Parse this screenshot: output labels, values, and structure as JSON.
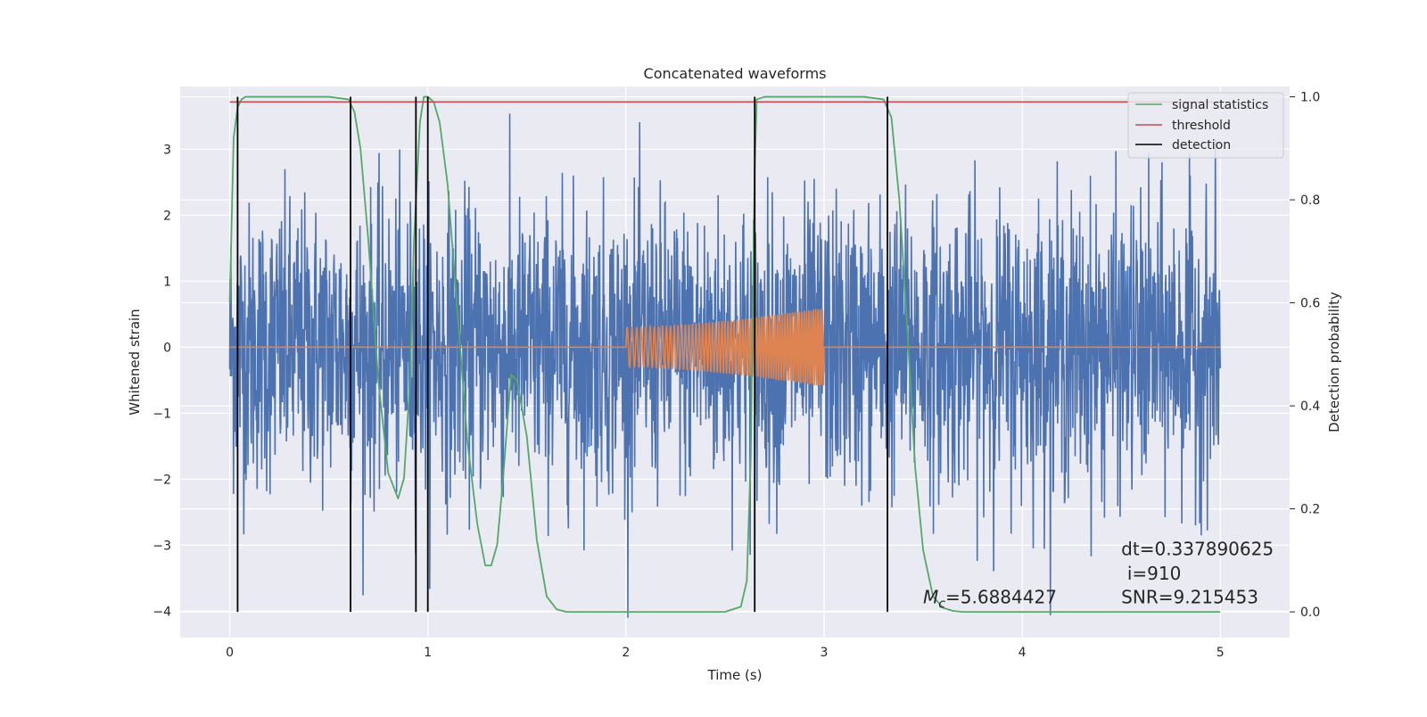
{
  "chart_data": {
    "type": "line",
    "title": "Concatenated waveforms",
    "xlabel": "Time (s)",
    "ylabel": "Whitened strain",
    "ylabel_right": "Detection probability",
    "xlim": [
      -0.25,
      5.35
    ],
    "ylim": [
      -4.4,
      3.95
    ],
    "ylim_right": [
      -0.05,
      1.02
    ],
    "x_ticks": [
      0,
      1,
      2,
      3,
      4,
      5
    ],
    "x_tick_labels": [
      "0",
      "1",
      "2",
      "3",
      "4",
      "5"
    ],
    "y_ticks": [
      -4,
      -3,
      -2,
      -1,
      0,
      1,
      2,
      3
    ],
    "y_tick_labels": [
      "−4",
      "−3",
      "−2",
      "−1",
      "0",
      "1",
      "2",
      "3"
    ],
    "y_right_ticks": [
      0.0,
      0.2,
      0.4,
      0.6,
      0.8,
      1.0
    ],
    "y_right_tick_labels": [
      "0.0",
      "0.2",
      "0.4",
      "0.6",
      "0.8",
      "1.0"
    ],
    "grid": true,
    "legend_position": "top-right",
    "background_color": "#eaeaf2",
    "noise": {
      "color": "#4c72b0",
      "x_range": [
        0,
        5
      ],
      "typical_amplitude": 1.5,
      "max_peak": 3.7,
      "min_trough": -4.1
    },
    "injected_signal": {
      "color": "#dd8452",
      "x_range": [
        2.0,
        3.0
      ],
      "amplitude_range": [
        0.3,
        0.6
      ]
    },
    "series": [
      {
        "name": "signal statistics",
        "color": "#55a868",
        "axis": "right",
        "x": [
          0.0,
          0.02,
          0.04,
          0.06,
          0.08,
          0.1,
          0.2,
          0.3,
          0.4,
          0.5,
          0.6,
          0.63,
          0.66,
          0.7,
          0.75,
          0.8,
          0.85,
          0.88,
          0.91,
          0.93,
          0.96,
          0.98,
          1.0,
          1.03,
          1.06,
          1.1,
          1.15,
          1.2,
          1.25,
          1.29,
          1.32,
          1.35,
          1.38,
          1.42,
          1.45,
          1.5,
          1.55,
          1.6,
          1.65,
          1.7,
          2.0,
          2.5,
          2.58,
          2.61,
          2.63,
          2.65,
          2.66,
          2.7,
          2.8,
          3.0,
          3.2,
          3.3,
          3.34,
          3.38,
          3.42,
          3.46,
          3.5,
          3.55,
          3.6,
          3.65,
          3.7,
          4.0,
          5.0
        ],
        "values": [
          0.6,
          0.92,
          0.98,
          0.995,
          1.0,
          1.0,
          1.0,
          1.0,
          1.0,
          1.0,
          0.995,
          0.97,
          0.9,
          0.72,
          0.45,
          0.27,
          0.22,
          0.26,
          0.45,
          0.72,
          0.95,
          1.0,
          1.0,
          0.99,
          0.95,
          0.83,
          0.58,
          0.33,
          0.17,
          0.09,
          0.09,
          0.13,
          0.26,
          0.46,
          0.45,
          0.34,
          0.14,
          0.03,
          0.005,
          0.0,
          0.0,
          0.0,
          0.01,
          0.06,
          0.3,
          0.86,
          0.995,
          1.0,
          1.0,
          1.0,
          1.0,
          0.995,
          0.96,
          0.8,
          0.55,
          0.28,
          0.12,
          0.03,
          0.008,
          0.002,
          0.0,
          0.0,
          0.0
        ]
      },
      {
        "name": "threshold",
        "color": "#c44e52",
        "axis": "right",
        "x": [
          0.0,
          5.0
        ],
        "values": [
          0.99,
          0.99
        ]
      },
      {
        "name": "detection",
        "color": "#000000",
        "axis": "right",
        "vertical_lines_x": [
          0.04,
          0.61,
          0.94,
          1.0,
          2.65,
          3.32
        ],
        "y_span": [
          0.0,
          1.0
        ]
      }
    ],
    "annotations": [
      {
        "text": "dt=0.337890625",
        "x": 4.5,
        "y": -3.15
      },
      {
        "text": "i=910",
        "x": 4.53,
        "y": -3.52
      },
      {
        "text": "=5.6884427",
        "symbol": "M",
        "subscript": "c",
        "x": 3.5,
        "y": -3.88
      },
      {
        "text": "SNR=9.215453",
        "x": 4.5,
        "y": -3.88
      }
    ]
  }
}
